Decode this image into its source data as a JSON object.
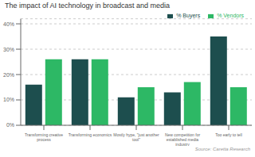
{
  "chart_data": {
    "type": "bar",
    "title": "The impact of AI technology in broadcast and media",
    "categories": [
      "Transforming creative\nprocess",
      "Transforming economics",
      "Mostly hype, \"just another\ntool\"",
      "New competition for\nestablished media\nindustry",
      "Too early to tell"
    ],
    "series": [
      {
        "name": "% Buyers",
        "color": "#1d4e4e",
        "values": [
          16,
          26,
          11,
          13,
          35
        ]
      },
      {
        "name": "% Vendors",
        "color": "#2db865",
        "values": [
          26,
          26,
          15,
          17,
          15
        ]
      }
    ],
    "ylim": [
      0,
      42
    ],
    "yticks": [
      {
        "value": 0,
        "label": "0%"
      },
      {
        "value": 10,
        "label": "10%"
      },
      {
        "value": 20,
        "label": "20%"
      },
      {
        "value": 30,
        "label": "30%"
      },
      {
        "value": 40,
        "label": "40%"
      }
    ],
    "grid": true,
    "legend": "upper right",
    "annotations": [
      "Source: Caretta Research"
    ]
  }
}
